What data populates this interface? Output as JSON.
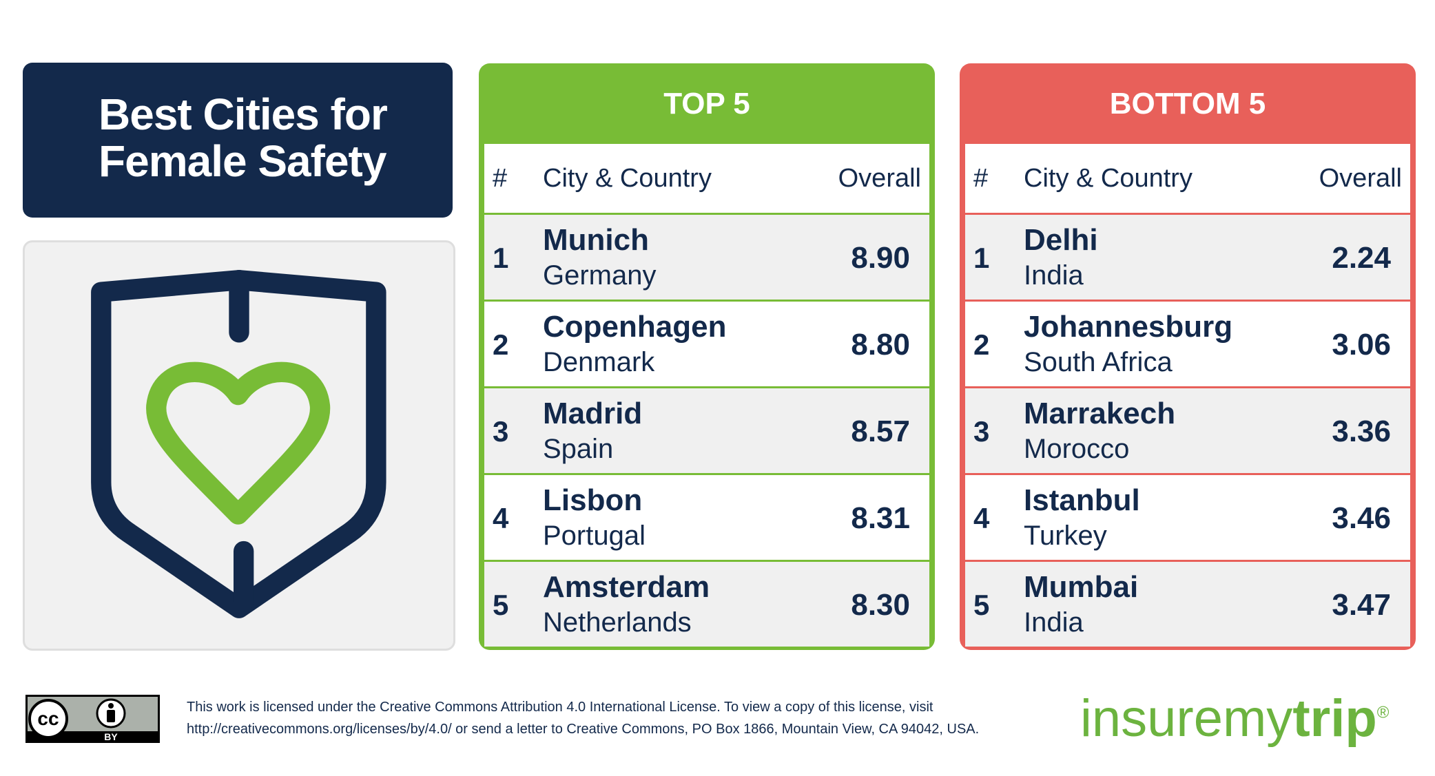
{
  "title_lines": [
    "Best Cities for",
    "Female Safety"
  ],
  "tables": [
    {
      "heading": "TOP 5",
      "columns": [
        "#",
        "City & Country",
        "Overall"
      ],
      "rows": [
        {
          "rank": 1,
          "city": "Munich",
          "country": "Germany",
          "overall": "8.90"
        },
        {
          "rank": 2,
          "city": "Copenhagen",
          "country": "Denmark",
          "overall": "8.80"
        },
        {
          "rank": 3,
          "city": "Madrid",
          "country": "Spain",
          "overall": "8.57"
        },
        {
          "rank": 4,
          "city": "Lisbon",
          "country": "Portugal",
          "overall": "8.31"
        },
        {
          "rank": 5,
          "city": "Amsterdam",
          "country": "Netherlands",
          "overall": "8.30"
        }
      ]
    },
    {
      "heading": "BOTTOM 5",
      "columns": [
        "#",
        "City & Country",
        "Overall"
      ],
      "rows": [
        {
          "rank": 1,
          "city": "Delhi",
          "country": "India",
          "overall": "2.24"
        },
        {
          "rank": 2,
          "city": "Johannesburg",
          "country": "South Africa",
          "overall": "3.06"
        },
        {
          "rank": 3,
          "city": "Marrakech",
          "country": "Morocco",
          "overall": "3.36"
        },
        {
          "rank": 4,
          "city": "Istanbul",
          "country": "Turkey",
          "overall": "3.46"
        },
        {
          "rank": 5,
          "city": "Mumbai",
          "country": "India",
          "overall": "3.47"
        }
      ]
    }
  ],
  "license": {
    "badge_cc": "cc",
    "badge_by": "BY",
    "line1": "This work is licensed under the Creative Commons Attribution 4.0 International License. To view a copy of this license, visit",
    "line2": "http://creativecommons.org/licenses/by/4.0/ or send a letter to Creative Commons, PO Box 1866, Mountain View, CA 94042, USA."
  },
  "logo": {
    "part1": "insuremy",
    "part2": "trip",
    "mark": "®"
  }
}
